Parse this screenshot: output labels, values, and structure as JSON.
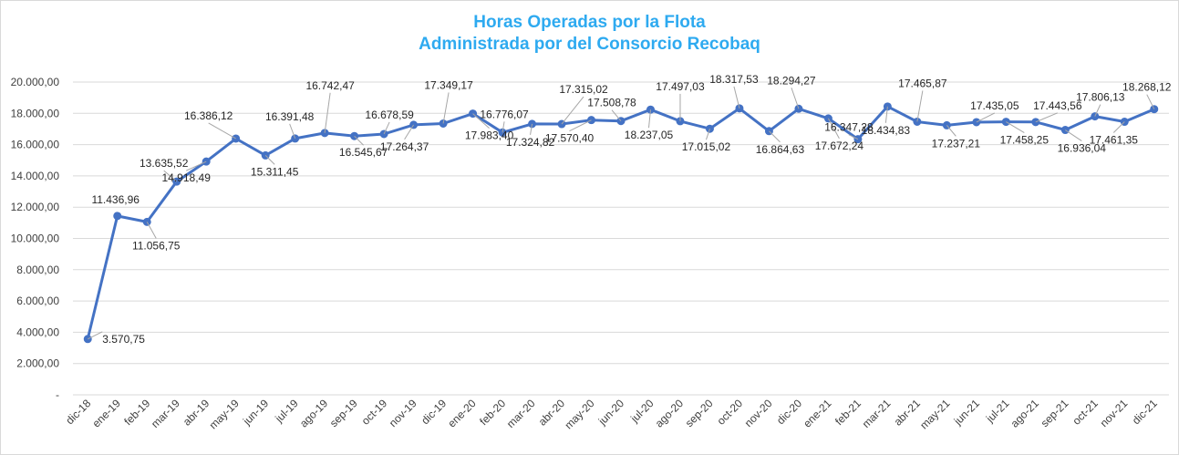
{
  "chart_data": {
    "type": "line",
    "title_line1": "Horas Operadas por la Flota",
    "title_line2": "Administrada por del Consorcio Recobaq",
    "xlabel": "",
    "ylabel": "",
    "ylim": [
      0,
      20000
    ],
    "yticks": [
      0,
      2000,
      4000,
      6000,
      8000,
      10000,
      12000,
      14000,
      16000,
      18000,
      20000
    ],
    "ytick_labels": [
      "-",
      "2.000,00",
      "4.000,00",
      "6.000,00",
      "8.000,00",
      "10.000,00",
      "12.000,00",
      "14.000,00",
      "16.000,00",
      "18.000,00",
      "20.000,00"
    ],
    "grid": true,
    "line_color": "#4472c4",
    "categories": [
      "dic-18",
      "ene-19",
      "feb-19",
      "mar-19",
      "abr-19",
      "may-19",
      "jun-19",
      "jul-19",
      "ago-19",
      "sep-19",
      "oct-19",
      "nov-19",
      "dic-19",
      "ene-20",
      "feb-20",
      "mar-20",
      "abr-20",
      "may-20",
      "jun-20",
      "jul-20",
      "ago-20",
      "sep-20",
      "oct-20",
      "nov-20",
      "dic-20",
      "ene-21",
      "feb-21",
      "mar-21",
      "abr-21",
      "may-21",
      "jun-21",
      "jul-21",
      "ago-21",
      "sep-21",
      "oct-21",
      "nov-21",
      "dic-21"
    ],
    "values": [
      3570.75,
      11436.96,
      11056.75,
      13635.52,
      14918.49,
      16386.12,
      15311.45,
      16391.48,
      16742.47,
      16545.67,
      16678.59,
      17264.37,
      17349.17,
      17983.4,
      16776.07,
      17324.82,
      17315.02,
      17570.4,
      17508.78,
      18237.05,
      17497.03,
      17015.02,
      18317.53,
      16864.63,
      18294.27,
      17672.24,
      16347.28,
      18434.83,
      17465.87,
      17237.21,
      17435.05,
      17458.25,
      17443.56,
      16936.04,
      17806.13,
      17461.35,
      18268.12
    ],
    "data_labels": [
      "3.570,75",
      "11.436,96",
      "11.056,75",
      "13.635,52",
      "14.918,49",
      "16.386,12",
      "15.311,45",
      "16.391,48",
      "16.742,47",
      "16.545,67",
      "16.678,59",
      "17.264,37",
      "17.349,17",
      "17.983,40",
      "16.776,07",
      "17.324,82",
      "17.315,02",
      "17.570,40",
      "17.508,78",
      "18.237,05",
      "17.497,03",
      "17.015,02",
      "18.317,53",
      "16.864,63",
      "18.294,27",
      "17.672,24",
      "16.347,28",
      "18.434,83",
      "17.465,87",
      "17.237,21",
      "17.435,05",
      "17.458,25",
      "17.443,56",
      "16.936,04",
      "17.806,13",
      "17.461,35",
      "18.268,12"
    ]
  }
}
